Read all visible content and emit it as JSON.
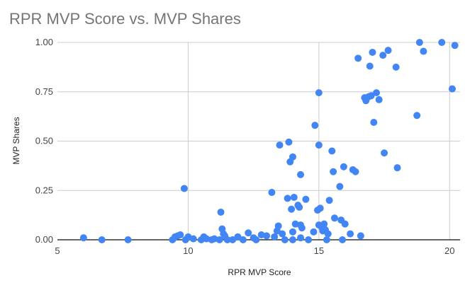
{
  "chart_data": {
    "type": "scatter",
    "title": "RPR MVP Score vs. MVP Shares",
    "xlabel": "RPR MVP Score",
    "ylabel": "MVP Shares",
    "xlim": [
      5,
      20.4
    ],
    "ylim": [
      0,
      1
    ],
    "xticks": [
      5,
      10,
      15,
      20
    ],
    "yticks": [
      0,
      0.25,
      0.5,
      0.75,
      1
    ],
    "xtick_labels": [
      "5",
      "10",
      "15",
      "20"
    ],
    "ytick_labels": [
      "0.00",
      "0.25",
      "0.50",
      "0.75",
      "1.00"
    ],
    "grid": true,
    "legend": "none",
    "color": "#4285f4",
    "points": [
      [
        6.0,
        0.01
      ],
      [
        6.7,
        0.0
      ],
      [
        7.7,
        0.0
      ],
      [
        9.4,
        0.0
      ],
      [
        9.5,
        0.015
      ],
      [
        9.6,
        0.02
      ],
      [
        9.7,
        0.025
      ],
      [
        9.85,
        0.26
      ],
      [
        9.9,
        0.0
      ],
      [
        10.0,
        0.015
      ],
      [
        10.2,
        0.005
      ],
      [
        10.5,
        0.0
      ],
      [
        10.6,
        0.015
      ],
      [
        10.7,
        0.005
      ],
      [
        10.9,
        0.0
      ],
      [
        11.0,
        0.005
      ],
      [
        11.2,
        0.0
      ],
      [
        11.25,
        0.14
      ],
      [
        11.3,
        0.055
      ],
      [
        11.35,
        0.03
      ],
      [
        11.4,
        0.02
      ],
      [
        11.5,
        0.0
      ],
      [
        11.7,
        0.0
      ],
      [
        11.9,
        0.015
      ],
      [
        12.1,
        0.0
      ],
      [
        12.3,
        0.035
      ],
      [
        12.5,
        0.01
      ],
      [
        12.6,
        0.0
      ],
      [
        12.8,
        0.025
      ],
      [
        13.0,
        0.02
      ],
      [
        13.2,
        0.24
      ],
      [
        13.3,
        0.015
      ],
      [
        13.4,
        0.045
      ],
      [
        13.45,
        0.07
      ],
      [
        13.5,
        0.48
      ],
      [
        13.6,
        0.03
      ],
      [
        13.7,
        0.0
      ],
      [
        13.8,
        0.21
      ],
      [
        13.85,
        0.495
      ],
      [
        13.9,
        0.395
      ],
      [
        13.95,
        0.155
      ],
      [
        14.0,
        0.42
      ],
      [
        14.05,
        0.215
      ],
      [
        14.1,
        0.08
      ],
      [
        14.0,
        0.04
      ],
      [
        14.0,
        0.0
      ],
      [
        14.2,
        0.175
      ],
      [
        14.25,
        0.165
      ],
      [
        14.3,
        0.33
      ],
      [
        14.3,
        0.075
      ],
      [
        14.35,
        0.06
      ],
      [
        14.3,
        0.01
      ],
      [
        14.5,
        0.205
      ],
      [
        14.6,
        0.0
      ],
      [
        14.8,
        0.04
      ],
      [
        14.85,
        0.58
      ],
      [
        15.0,
        0.745
      ],
      [
        15.0,
        0.48
      ],
      [
        14.95,
        0.15
      ],
      [
        15.05,
        0.16
      ],
      [
        15.0,
        0.075
      ],
      [
        15.1,
        0.065
      ],
      [
        15.15,
        0.045
      ],
      [
        15.2,
        0.08
      ],
      [
        15.25,
        0.05
      ],
      [
        15.3,
        0.0
      ],
      [
        15.35,
        0.03
      ],
      [
        15.4,
        0.2
      ],
      [
        15.5,
        0.45
      ],
      [
        15.55,
        0.345
      ],
      [
        15.6,
        0.11
      ],
      [
        15.8,
        0.27
      ],
      [
        15.85,
        0.1
      ],
      [
        15.9,
        0.0
      ],
      [
        15.95,
        0.37
      ],
      [
        16.0,
        0.08
      ],
      [
        16.2,
        0.03
      ],
      [
        16.3,
        0.355
      ],
      [
        16.4,
        0.345
      ],
      [
        16.5,
        0.92
      ],
      [
        16.6,
        0.02
      ],
      [
        16.75,
        0.72
      ],
      [
        16.8,
        0.705
      ],
      [
        16.9,
        0.725
      ],
      [
        16.95,
        0.88
      ],
      [
        17.0,
        0.73
      ],
      [
        17.05,
        0.95
      ],
      [
        17.1,
        0.595
      ],
      [
        17.2,
        0.745
      ],
      [
        17.3,
        0.71
      ],
      [
        17.45,
        0.935
      ],
      [
        17.5,
        0.44
      ],
      [
        17.65,
        0.96
      ],
      [
        17.95,
        0.875
      ],
      [
        18.0,
        0.365
      ],
      [
        18.75,
        0.63
      ],
      [
        18.85,
        1.0
      ],
      [
        19.0,
        0.955
      ],
      [
        19.7,
        1.0
      ],
      [
        20.1,
        0.765
      ],
      [
        20.2,
        0.985
      ]
    ]
  }
}
